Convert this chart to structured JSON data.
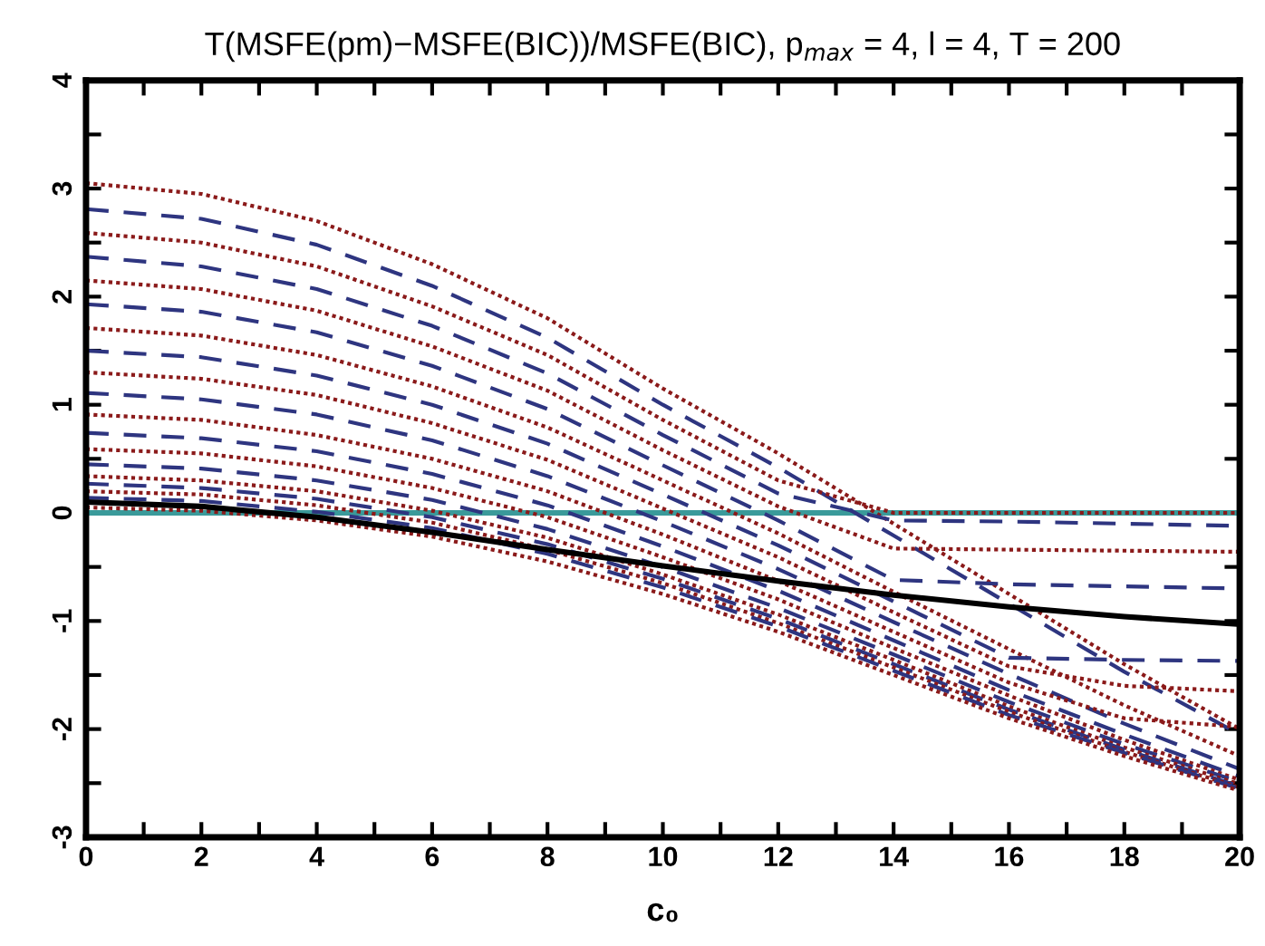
{
  "chart_data": {
    "type": "line",
    "title": "T(MSFE(pm)−MSFE(BIC))/MSFE(BIC), p$_{max}$ = 4, l = 4, T = 200",
    "xlabel": "c₀",
    "x": [
      0,
      2,
      4,
      6,
      8,
      10,
      12,
      14,
      16,
      18,
      20
    ],
    "xlim": [
      0,
      20
    ],
    "ylim": [
      -3,
      4
    ],
    "xticks": [
      0,
      {
        "value": 1,
        "label": null
      },
      2,
      {
        "value": 3,
        "label": null
      },
      4,
      {
        "value": 5,
        "label": null
      },
      6,
      {
        "value": 7,
        "label": null
      },
      8,
      {
        "value": 9,
        "label": null
      },
      10,
      {
        "value": 11,
        "label": null
      },
      12,
      {
        "value": 13,
        "label": null
      },
      14,
      {
        "value": 15,
        "label": null
      },
      16,
      {
        "value": 17,
        "label": null
      },
      18,
      {
        "value": 19,
        "label": null
      },
      20
    ],
    "yticks": [
      -3,
      {
        "value": -2.5,
        "label": null
      },
      -2,
      {
        "value": -1.5,
        "label": null
      },
      -1,
      {
        "value": -0.5,
        "label": null
      },
      0,
      {
        "value": 0.5,
        "label": null
      },
      1,
      {
        "value": 1.5,
        "label": null
      },
      2,
      {
        "value": 2.5,
        "label": null
      },
      3,
      {
        "value": 3.5,
        "label": null
      },
      4
    ],
    "grid": false,
    "legend": false,
    "marker": "none",
    "series": [
      {
        "color": "#3a9a9a",
        "line_style": "solid",
        "x": [
          0,
          20
        ],
        "values": [
          0,
          0
        ]
      },
      {
        "color": "#8b1a1a",
        "line_style": "dotted",
        "values": [
          3.05,
          2.95,
          2.7,
          2.3,
          1.8,
          1.15,
          0.55,
          -0.1,
          -0.75,
          -1.4,
          -2.0
        ]
      },
      {
        "color": "#2e3580",
        "line_style": "dashed",
        "values": [
          2.81,
          2.72,
          2.48,
          2.1,
          1.62,
          1.0,
          0.42,
          -0.21,
          -0.84,
          -1.47,
          -2.05
        ]
      },
      {
        "color": "#8b1a1a",
        "line_style": "dotted",
        "values": [
          2.59,
          2.5,
          2.28,
          1.91,
          1.46,
          0.86,
          0.3,
          0,
          0,
          0,
          0
        ]
      },
      {
        "color": "#2e3580",
        "line_style": "dashed",
        "values": [
          2.37,
          2.28,
          2.07,
          1.73,
          1.29,
          0.72,
          0.18,
          -0.07,
          -0.08,
          -0.1,
          -0.12
        ]
      },
      {
        "color": "#8b1a1a",
        "line_style": "dotted",
        "values": [
          2.15,
          2.07,
          1.87,
          1.54,
          1.13,
          0.58,
          0.06,
          -0.33,
          -0.34,
          -0.35,
          -0.36
        ]
      },
      {
        "color": "#2e3580",
        "line_style": "dashed",
        "values": [
          1.93,
          1.86,
          1.67,
          1.36,
          0.96,
          0.44,
          -0.07,
          -0.62,
          -0.66,
          -0.68,
          -0.7
        ]
      },
      {
        "color": "#8b1a1a",
        "line_style": "dotted",
        "values": [
          1.71,
          1.64,
          1.46,
          1.17,
          0.79,
          0.3,
          -0.19,
          -0.73,
          -1.26,
          -1.78,
          -2.25
        ]
      },
      {
        "color": "#2e3580",
        "line_style": "dashed",
        "values": [
          1.5,
          1.44,
          1.27,
          1.0,
          0.64,
          0.17,
          -0.3,
          -0.82,
          -1.34,
          -1.36,
          -1.37
        ]
      },
      {
        "color": "#8b1a1a",
        "line_style": "dotted",
        "values": [
          1.3,
          1.24,
          1.09,
          0.83,
          0.49,
          0.04,
          -0.41,
          -0.92,
          -1.42,
          -1.6,
          -1.65
        ]
      },
      {
        "color": "#2e3580",
        "line_style": "dashed",
        "values": [
          1.11,
          1.05,
          0.91,
          0.67,
          0.34,
          -0.08,
          -0.52,
          -1.01,
          -1.49,
          -1.95,
          -2.37
        ]
      },
      {
        "color": "#8b1a1a",
        "line_style": "dotted",
        "values": [
          0.91,
          0.86,
          0.72,
          0.5,
          0.2,
          -0.2,
          -0.63,
          -1.1,
          -1.57,
          -1.9,
          -1.98
        ]
      },
      {
        "color": "#2e3580",
        "line_style": "dashed",
        "values": [
          0.74,
          0.69,
          0.57,
          0.36,
          0.07,
          -0.31,
          -0.72,
          -1.18,
          -1.64,
          -2.05,
          -2.44
        ]
      },
      {
        "color": "#8b1a1a",
        "line_style": "dotted",
        "values": [
          0.59,
          0.55,
          0.43,
          0.23,
          -0.04,
          -0.41,
          -0.8,
          -1.25,
          -1.69,
          -2.1,
          -2.47
        ]
      },
      {
        "color": "#2e3580",
        "line_style": "dashed",
        "values": [
          0.45,
          0.41,
          0.3,
          0.12,
          -0.15,
          -0.5,
          -0.88,
          -1.31,
          -1.75,
          -2.14,
          -2.49
        ]
      },
      {
        "color": "#8b1a1a",
        "line_style": "dotted",
        "values": [
          0.34,
          0.3,
          0.2,
          0.02,
          -0.23,
          -0.57,
          -0.94,
          -1.36,
          -1.79,
          -2.17,
          -2.51
        ]
      },
      {
        "color": "#2e3580",
        "line_style": "dashed",
        "values": [
          0.27,
          0.23,
          0.13,
          -0.04,
          -0.29,
          -0.61,
          -0.98,
          -1.4,
          -1.82,
          -2.19,
          -2.53
        ]
      },
      {
        "color": "#8b1a1a",
        "line_style": "dotted",
        "values": [
          0.2,
          0.17,
          0.07,
          -0.09,
          -0.34,
          -0.65,
          -1.02,
          -1.43,
          -1.84,
          -2.21,
          -2.54
        ]
      },
      {
        "color": "#2e3580",
        "line_style": "dashed",
        "values": [
          0.14,
          0.11,
          0.01,
          -0.14,
          -0.38,
          -0.69,
          -1.05,
          -1.46,
          -1.87,
          -2.22,
          -2.55
        ]
      },
      {
        "color": "#8b1a1a",
        "line_style": "dotted",
        "values": [
          0.05,
          0.02,
          -0.07,
          -0.22,
          -0.45,
          -0.75,
          -1.1,
          -1.5,
          -1.9,
          -2.25,
          -2.57
        ]
      },
      {
        "color": "#000000",
        "line_style": "solid",
        "values": [
          0.1,
          0.06,
          -0.04,
          -0.18,
          -0.34,
          -0.49,
          -0.63,
          -0.76,
          -0.87,
          -0.96,
          -1.03
        ]
      }
    ]
  }
}
